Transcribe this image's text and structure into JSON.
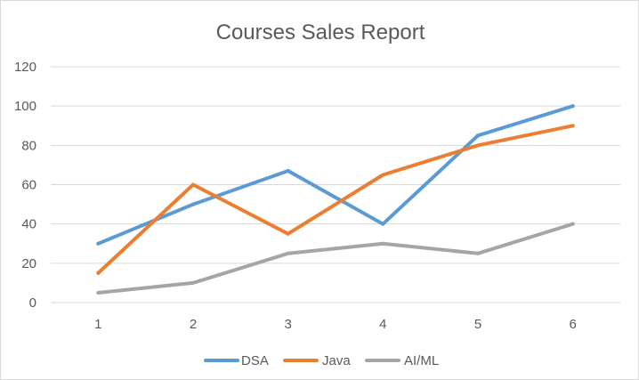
{
  "chart_data": {
    "type": "line",
    "title": "Courses Sales Report",
    "xlabel": "",
    "ylabel": "",
    "x": [
      1,
      2,
      3,
      4,
      5,
      6
    ],
    "ylim": [
      0,
      120
    ],
    "yticks": [
      0,
      20,
      40,
      60,
      80,
      100,
      120
    ],
    "grid": true,
    "legend": "bottom",
    "series": [
      {
        "name": "DSA",
        "color": "#5b9bd5",
        "values": [
          30,
          50,
          67,
          40,
          85,
          100
        ]
      },
      {
        "name": "Java",
        "color": "#ed7d31",
        "values": [
          15,
          60,
          35,
          65,
          80,
          90
        ]
      },
      {
        "name": "AI/ML",
        "color": "#a5a5a5",
        "values": [
          5,
          10,
          25,
          30,
          25,
          40
        ]
      }
    ]
  }
}
